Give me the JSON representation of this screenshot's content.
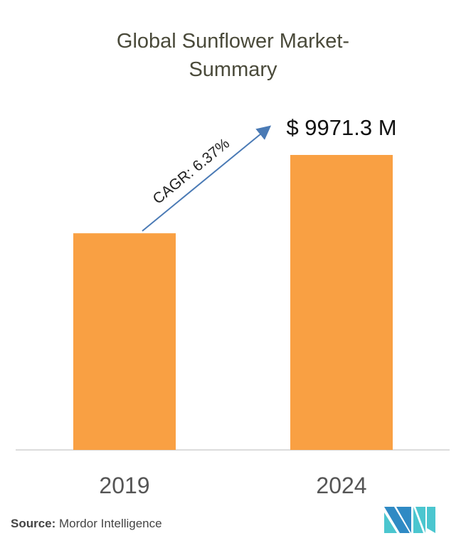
{
  "chart_data": {
    "type": "bar",
    "title_line1": "Global Sunflower Market-",
    "title_line2": "Summary",
    "categories": [
      "2019",
      "2024"
    ],
    "values": [
      7324,
      9971.3
    ],
    "value_labels": [
      "",
      "$ 9971.3 M"
    ],
    "unit": "USD Million",
    "annotation": "CAGR: 6.37%",
    "bar_color": "#f9a043",
    "arrow_color": "#4a7ab5",
    "grid": false,
    "ylim": [
      0,
      13500
    ]
  },
  "source": {
    "label": "Source:",
    "text": " Mordor Intelligence"
  },
  "logo": {
    "text": "MI",
    "colors": [
      "#2f8ac4",
      "#4bc6cf"
    ]
  }
}
